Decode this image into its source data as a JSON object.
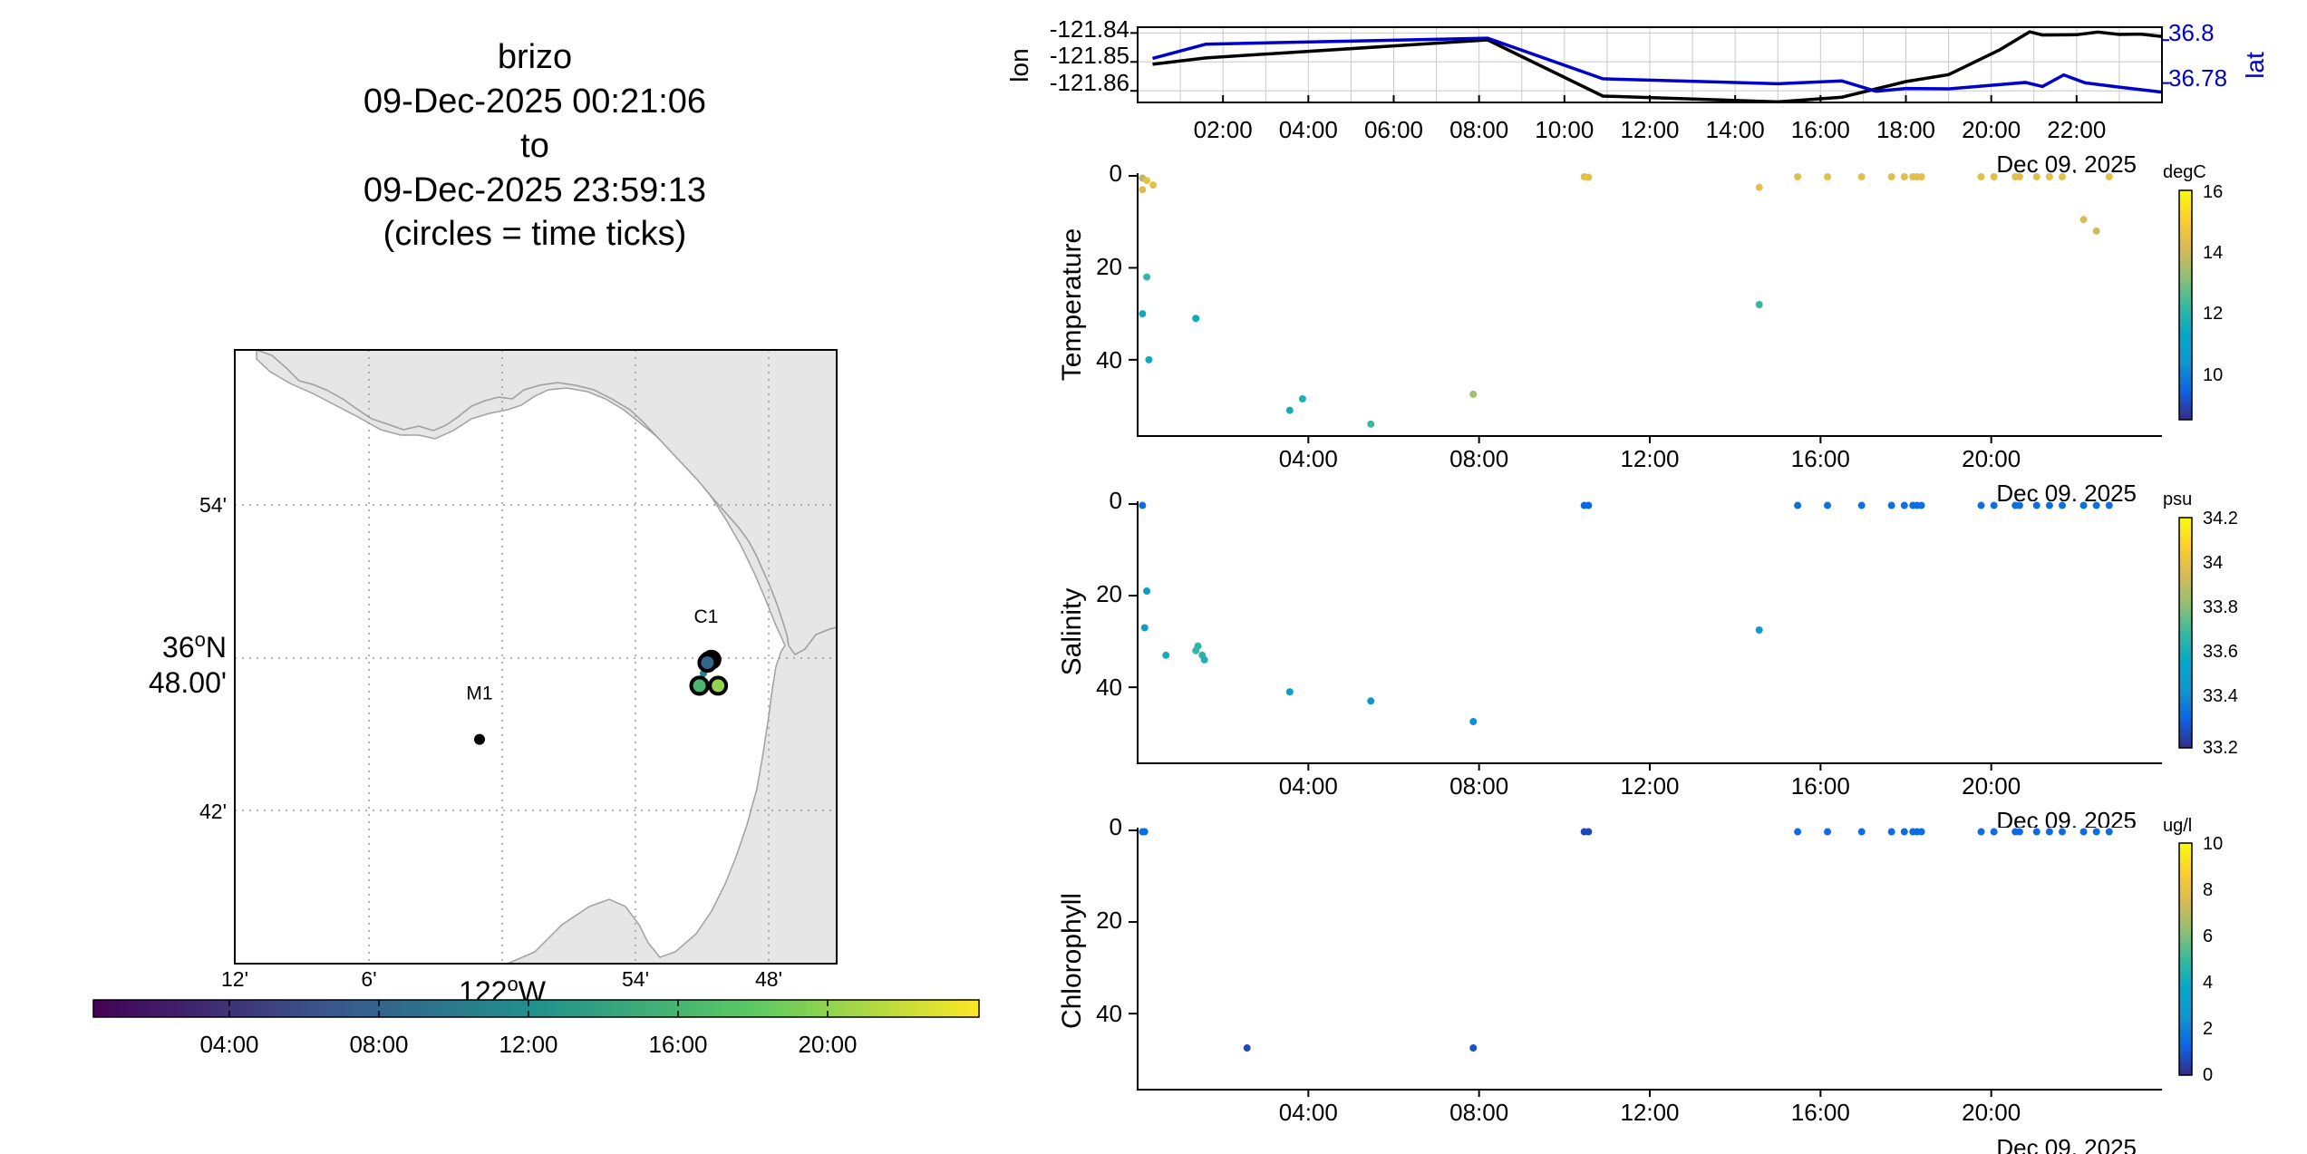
{
  "title": {
    "lines": [
      "brizo",
      "09-Dec-2025 00:21:06",
      "to",
      "09-Dec-2025 23:59:13",
      "(circles = time ticks)"
    ]
  },
  "colors": {
    "axis": "#000000",
    "grid": "#c8c8c8",
    "lon_line": "#000000",
    "lat_line": "#0000cc",
    "lat_text": "#0000cc",
    "land": "#e6e6e6",
    "coast": "#a0a0a0",
    "viridis": [
      "#440154",
      "#3b528b",
      "#21918c",
      "#5ec962",
      "#fde725"
    ],
    "parula": [
      "#352a87",
      "#0d64e1",
      "#1195d0",
      "#06a7c6",
      "#38b99e",
      "#92bf73",
      "#d9ba56",
      "#fcce2e",
      "#f9fb0e"
    ]
  },
  "map": {
    "lat_ticks": [
      "54'",
      "36°N 48.00'",
      "42'"
    ],
    "lat_tick_main": "36",
    "lat_tick_deg": "o",
    "lat_tick_n": "N",
    "lat_tick_min": "48.00'",
    "lon_ticks": [
      "12'",
      "6'",
      "54'",
      "48'"
    ],
    "lon_main": "122",
    "lon_deg": "o",
    "lon_w": "W",
    "stations": [
      {
        "name": "M1",
        "lon": -122.017,
        "lat": 36.747
      },
      {
        "name": "C1",
        "lon": -121.847,
        "lat": 36.797
      }
    ],
    "track_points": [
      {
        "lon": -121.843,
        "lat": 36.8,
        "t": 0.5
      },
      {
        "lon": -121.845,
        "lat": 36.798,
        "t": 1.5
      },
      {
        "lon": -121.846,
        "lat": 36.797,
        "t": 8.5
      },
      {
        "lon": -121.849,
        "lat": 36.79,
        "t": 10.9
      },
      {
        "lon": -121.852,
        "lat": 36.782,
        "t": 15.0
      },
      {
        "lon": -121.838,
        "lat": 36.782,
        "t": 20.5
      },
      {
        "lon": -121.852,
        "lat": 36.782,
        "t": 23.5
      }
    ],
    "time_circles": [
      {
        "lon": -121.843,
        "lat": 36.799,
        "t": 1.0
      },
      {
        "lon": -121.845,
        "lat": 36.798,
        "t": 4.0
      },
      {
        "lon": -121.846,
        "lat": 36.797,
        "t": 8.0
      },
      {
        "lon": -121.852,
        "lat": 36.782,
        "t": 14.0
      },
      {
        "lon": -121.852,
        "lat": 36.782,
        "t": 16.0
      },
      {
        "lon": -121.838,
        "lat": 36.782,
        "t": 20.0
      }
    ]
  },
  "time_colorbar": {
    "ticks": [
      "04:00",
      "08:00",
      "12:00",
      "16:00",
      "20:00"
    ]
  },
  "chart_data": [
    {
      "type": "line",
      "name": "position",
      "x_unit": "hours",
      "xticks": [
        "02:00",
        "04:00",
        "06:00",
        "08:00",
        "10:00",
        "12:00",
        "14:00",
        "16:00",
        "18:00",
        "20:00",
        "22:00"
      ],
      "date_label": "Dec 09, 2025",
      "ylabel_left": "lon",
      "ylabel_right": "lat",
      "yticks_left": [
        "-121.84",
        "-121.85",
        "-121.86"
      ],
      "yticks_right": [
        "36.8",
        "36.78"
      ],
      "ylim_left": [
        -121.864,
        -121.838
      ],
      "ylim_right": [
        36.771,
        36.806
      ],
      "grid": true,
      "series": [
        {
          "axis": "left",
          "x": [
            0.35,
            1.6,
            8.2,
            10.9,
            15.0,
            16.5,
            18.0,
            19.0,
            20.2,
            20.9,
            21.2,
            22.0,
            22.5,
            23.0,
            23.5,
            24.0
          ],
          "y": [
            -121.8508,
            -121.8486,
            -121.8424,
            -121.8618,
            -121.8638,
            -121.8622,
            -121.8568,
            -121.8544,
            -121.8458,
            -121.8396,
            -121.8407,
            -121.8406,
            -121.8397,
            -121.8405,
            -121.8404,
            -121.8412
          ]
        },
        {
          "axis": "right",
          "x": [
            0.35,
            1.6,
            8.2,
            10.9,
            15.0,
            16.5,
            17.3,
            18.0,
            19.0,
            20.8,
            21.2,
            21.7,
            22.2,
            23.0,
            24.0
          ],
          "y": [
            36.7915,
            36.7981,
            36.8009,
            36.782,
            36.7797,
            36.781,
            36.7762,
            36.7775,
            36.7773,
            36.7803,
            36.7784,
            36.7838,
            36.7801,
            36.7781,
            36.7758
          ]
        }
      ]
    },
    {
      "type": "scatter",
      "name": "temperature",
      "ylabel": "Temperature",
      "unit": "degC",
      "yticks": [
        "0",
        "20",
        "40"
      ],
      "ylim": [
        0,
        56
      ],
      "xticks": [
        "04:00",
        "08:00",
        "12:00",
        "16:00",
        "20:00"
      ],
      "date_label": "Dec 09, 2025",
      "clim": [
        8.5,
        16.3
      ],
      "cticks": [
        "16",
        "14",
        "12",
        "10"
      ],
      "x": [
        0.05,
        0.05,
        0.05,
        0.15,
        0.15,
        0.2,
        0.3,
        1.3,
        3.5,
        3.8,
        5.4,
        7.8,
        10.4,
        10.5,
        14.5,
        14.5,
        15.4,
        16.1,
        16.9,
        17.6,
        17.9,
        18.1,
        18.2,
        18.3,
        19.7,
        20.0,
        20.5,
        20.6,
        21.0,
        21.3,
        21.6,
        22.1,
        22.4,
        22.7
      ],
      "y": [
        0.5,
        3,
        30,
        1,
        22,
        40,
        2,
        31,
        51,
        48.5,
        54,
        47.5,
        0.2,
        0.3,
        28,
        2.5,
        0.2,
        0.2,
        0.2,
        0.2,
        0.2,
        0.2,
        0.2,
        0.2,
        0.2,
        0.2,
        0.2,
        0.2,
        0.2,
        0.2,
        0.2,
        9.5,
        12,
        0.2
      ],
      "c": [
        13.8,
        14.5,
        11.6,
        14.7,
        12.3,
        11.6,
        14.7,
        11.6,
        11.7,
        11.9,
        12.4,
        13.6,
        14.6,
        14.6,
        12.4,
        14.7,
        14.6,
        14.6,
        14.6,
        14.6,
        14.6,
        14.6,
        14.6,
        14.6,
        14.6,
        14.6,
        14.6,
        14.6,
        14.6,
        14.6,
        14.6,
        14.4,
        14.2,
        14.6
      ]
    },
    {
      "type": "scatter",
      "name": "salinity",
      "ylabel": "Salinity",
      "unit": "psu",
      "yticks": [
        "0",
        "20",
        "40"
      ],
      "ylim": [
        0,
        56
      ],
      "xticks": [
        "04:00",
        "08:00",
        "12:00",
        "16:00",
        "20:00"
      ],
      "date_label": "Dec 09, 2025",
      "clim": [
        33.18,
        34.22
      ],
      "cticks": [
        "34.2",
        "34",
        "33.8",
        "33.6",
        "33.4",
        "33.2"
      ],
      "x": [
        0.05,
        0.1,
        0.15,
        0.6,
        1.3,
        1.35,
        1.45,
        1.5,
        3.5,
        5.4,
        7.8,
        10.4,
        10.5,
        14.5,
        15.4,
        16.1,
        16.9,
        17.6,
        17.9,
        18.1,
        18.2,
        18.3,
        19.7,
        20.0,
        20.5,
        20.6,
        21.0,
        21.3,
        21.6,
        22.1,
        22.4,
        22.7
      ],
      "y": [
        0.3,
        27,
        19,
        33,
        32,
        31,
        33,
        34,
        41,
        43,
        47.5,
        0.3,
        0.3,
        27.5,
        0.3,
        0.3,
        0.3,
        0.3,
        0.3,
        0.3,
        0.3,
        0.3,
        0.3,
        0.3,
        0.3,
        0.3,
        0.3,
        0.3,
        0.3,
        0.3,
        0.3,
        0.3
      ],
      "c": [
        33.33,
        33.5,
        33.5,
        33.6,
        33.68,
        33.68,
        33.66,
        33.64,
        33.5,
        33.45,
        33.42,
        33.32,
        33.32,
        33.48,
        33.34,
        33.34,
        33.34,
        33.34,
        33.34,
        33.34,
        33.34,
        33.34,
        33.34,
        33.34,
        33.34,
        33.34,
        33.34,
        33.34,
        33.34,
        33.34,
        33.34,
        33.34
      ]
    },
    {
      "type": "scatter",
      "name": "chlorophyll",
      "ylabel": "Chlorophyll",
      "unit": "ug/l",
      "yticks": [
        "0",
        "20",
        "40"
      ],
      "ylim": [
        0,
        56
      ],
      "xticks": [
        "04:00",
        "08:00",
        "12:00",
        "16:00",
        "20:00"
      ],
      "date_label": "Dec 09, 2025",
      "clim": [
        -0.3,
        10.1
      ],
      "cticks": [
        "10",
        "8",
        "6",
        "4",
        "2",
        "0"
      ],
      "x": [
        0.05,
        0.1,
        2.5,
        7.8,
        10.4,
        10.5,
        15.4,
        16.1,
        16.9,
        17.6,
        17.9,
        18.1,
        18.2,
        18.3,
        19.7,
        20.0,
        20.5,
        20.6,
        21.0,
        21.3,
        21.6,
        22.1,
        22.4,
        22.7
      ],
      "y": [
        0.3,
        0.3,
        47.5,
        47.5,
        0.3,
        0.3,
        0.3,
        0.3,
        0.3,
        0.3,
        0.3,
        0.3,
        0.3,
        0.3,
        0.3,
        0.3,
        0.3,
        0.3,
        0.3,
        0.3,
        0.3,
        0.3,
        0.3,
        0.3
      ],
      "c": [
        1.2,
        1.2,
        0.4,
        0.6,
        0.3,
        0.3,
        1.2,
        1.2,
        1.2,
        1.2,
        1.2,
        1.2,
        1.2,
        1.2,
        1.2,
        1.2,
        1.2,
        1.2,
        1.2,
        1.2,
        1.2,
        1.2,
        1.2,
        1.2
      ]
    }
  ]
}
